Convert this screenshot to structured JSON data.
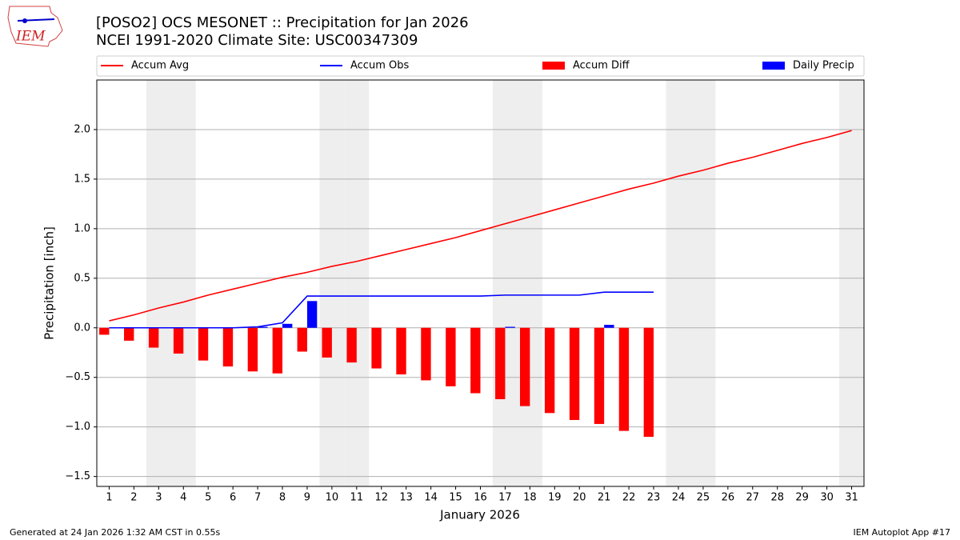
{
  "chart_data": {
    "type": "precip_accum",
    "title": "[POSO2] OCS MESONET :: Precipitation for Jan 2026",
    "subtitle": "NCEI 1991-2020 Climate Site: USC00347309",
    "xlabel": "January 2026",
    "ylabel": "Precipitation [inch]",
    "logo_text": "IEM",
    "footer_left": "Generated at 24 Jan 2026 1:32 AM CST in 0.55s",
    "footer_right": "IEM Autoplot App #17",
    "x": [
      1,
      2,
      3,
      4,
      5,
      6,
      7,
      8,
      9,
      10,
      11,
      12,
      13,
      14,
      15,
      16,
      17,
      18,
      19,
      20,
      21,
      22,
      23,
      24,
      25,
      26,
      27,
      28,
      29,
      30,
      31
    ],
    "xlim": [
      0.5,
      31.5
    ],
    "xticks": [
      1,
      2,
      3,
      4,
      5,
      6,
      7,
      8,
      9,
      10,
      11,
      12,
      13,
      14,
      15,
      16,
      17,
      18,
      19,
      20,
      21,
      22,
      23,
      24,
      25,
      26,
      27,
      28,
      29,
      30,
      31
    ],
    "ylim": [
      -1.6,
      2.5
    ],
    "yticks": [
      {
        "value": -1.5,
        "label": "−1.5"
      },
      {
        "value": -1.0,
        "label": "−1.0"
      },
      {
        "value": -0.5,
        "label": "−0.5"
      },
      {
        "value": 0,
        "label": "0.0"
      },
      {
        "value": 0.5,
        "label": "0.5"
      },
      {
        "value": 1.0,
        "label": "1.0"
      },
      {
        "value": 1.5,
        "label": "1.5"
      },
      {
        "value": 2.0,
        "label": "2.0"
      }
    ],
    "grid": true,
    "weekend_shading": true,
    "series": [
      {
        "name": "Accum Avg",
        "kind": "line",
        "color": "#ff0000",
        "values": [
          0.07,
          0.13,
          0.2,
          0.26,
          0.33,
          0.39,
          0.45,
          0.51,
          0.56,
          0.62,
          0.67,
          0.73,
          0.79,
          0.85,
          0.91,
          0.98,
          1.05,
          1.12,
          1.19,
          1.26,
          1.33,
          1.4,
          1.46,
          1.53,
          1.59,
          1.66,
          1.72,
          1.79,
          1.86,
          1.92,
          1.99
        ]
      },
      {
        "name": "Accum Obs",
        "kind": "line",
        "color": "#0000ff",
        "values": [
          0,
          0,
          0,
          0,
          0,
          0,
          0.01,
          0.05,
          0.32,
          0.32,
          0.32,
          0.32,
          0.32,
          0.32,
          0.32,
          0.32,
          0.33,
          0.33,
          0.33,
          0.33,
          0.36,
          0.36,
          0.36,
          null,
          null,
          null,
          null,
          null,
          null,
          null,
          null
        ]
      },
      {
        "name": "Accum Diff",
        "kind": "bar",
        "side": "left",
        "color": "#ff0000",
        "values": [
          -0.07,
          -0.13,
          -0.2,
          -0.26,
          -0.33,
          -0.39,
          -0.44,
          -0.46,
          -0.24,
          -0.3,
          -0.35,
          -0.41,
          -0.47,
          -0.53,
          -0.59,
          -0.66,
          -0.72,
          -0.79,
          -0.86,
          -0.93,
          -0.97,
          -1.04,
          -1.1,
          null,
          null,
          null,
          null,
          null,
          null,
          null,
          null
        ]
      },
      {
        "name": "Daily Precip",
        "kind": "bar",
        "side": "right",
        "color": "#0000ff",
        "values": [
          0,
          0,
          0,
          0,
          0,
          0,
          0.01,
          0.04,
          0.27,
          0,
          0,
          0,
          0,
          0,
          0,
          0,
          0.01,
          0,
          0,
          0,
          0.03,
          0,
          0,
          null,
          null,
          null,
          null,
          null,
          null,
          null,
          null
        ]
      }
    ]
  }
}
